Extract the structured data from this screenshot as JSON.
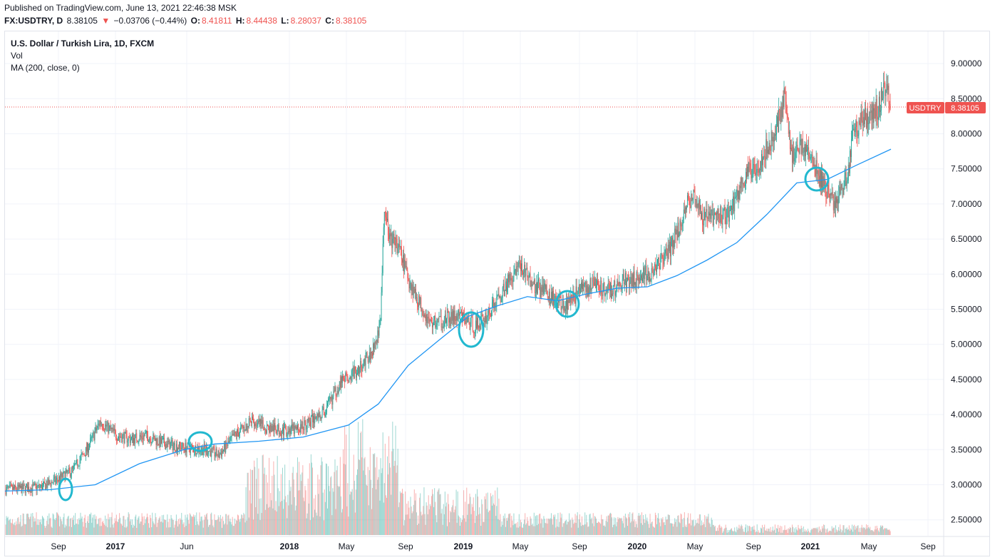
{
  "header": {
    "published": "Published on TradingView.com, June 13, 2021 22:46:38 MSK",
    "symbol": "FX:USDTRY, D",
    "last": "8.38105",
    "change_arrow": "▼",
    "change": "−0.03706 (−0.44%)",
    "open_label": "O:",
    "open": "8.41811",
    "high_label": "H:",
    "high": "8.44438",
    "low_label": "L:",
    "low": "8.28037",
    "close_label": "C:",
    "close": "8.38105"
  },
  "legend": {
    "title": "U.S. Dollar / Turkish Lira, 1D, FXCM",
    "vol": "Vol",
    "ma": "MA (200, close, 0)"
  },
  "price_badge": {
    "symbol": "USDTRY",
    "value": "8.38105"
  },
  "colors": {
    "up": "#26a69a",
    "down": "#ef5350",
    "ma": "#2196f3",
    "marker": "#22b8cf",
    "grid": "#f0f3fa"
  },
  "chart_data": {
    "type": "candlestick",
    "title": "U.S. Dollar / Turkish Lira, 1D, FXCM",
    "yaxis": {
      "min": 2.25,
      "max": 9.25,
      "ticks": [
        "9.00000",
        "8.50000",
        "8.00000",
        "7.50000",
        "7.00000",
        "6.50000",
        "6.00000",
        "5.50000",
        "5.00000",
        "4.50000",
        "4.00000",
        "3.50000",
        "3.00000",
        "2.50000"
      ]
    },
    "xaxis": {
      "ticks": [
        {
          "label": "Sep",
          "bold": false
        },
        {
          "label": "2017",
          "bold": true
        },
        {
          "label": "Jun",
          "bold": false
        },
        {
          "label": "2018",
          "bold": true
        },
        {
          "label": "May",
          "bold": false
        },
        {
          "label": "Sep",
          "bold": false
        },
        {
          "label": "2019",
          "bold": true
        },
        {
          "label": "May",
          "bold": false
        },
        {
          "label": "Sep",
          "bold": false
        },
        {
          "label": "2020",
          "bold": true
        },
        {
          "label": "May",
          "bold": false
        },
        {
          "label": "Sep",
          "bold": false
        },
        {
          "label": "2021",
          "bold": true
        },
        {
          "label": "May",
          "bold": false
        },
        {
          "label": "Sep",
          "bold": false
        }
      ]
    },
    "price_path": [
      [
        "2016-07-01",
        2.93
      ],
      [
        "2016-08-15",
        2.95
      ],
      [
        "2016-09-15",
        2.97
      ],
      [
        "2016-10-15",
        3.07
      ],
      [
        "2016-11-15",
        3.2
      ],
      [
        "2016-12-15",
        3.5
      ],
      [
        "2017-01-11",
        3.9
      ],
      [
        "2017-02-15",
        3.7
      ],
      [
        "2017-03-15",
        3.65
      ],
      [
        "2017-04-15",
        3.7
      ],
      [
        "2017-05-15",
        3.6
      ],
      [
        "2017-06-15",
        3.55
      ],
      [
        "2017-07-15",
        3.52
      ],
      [
        "2017-08-15",
        3.5
      ],
      [
        "2017-09-10",
        3.42
      ],
      [
        "2017-10-15",
        3.72
      ],
      [
        "2017-11-15",
        3.9
      ],
      [
        "2017-12-15",
        3.82
      ],
      [
        "2018-01-15",
        3.78
      ],
      [
        "2018-02-15",
        3.78
      ],
      [
        "2018-03-15",
        3.9
      ],
      [
        "2018-04-15",
        4.05
      ],
      [
        "2018-05-15",
        4.45
      ],
      [
        "2018-06-15",
        4.6
      ],
      [
        "2018-07-15",
        4.85
      ],
      [
        "2018-08-05",
        5.25
      ],
      [
        "2018-08-13",
        6.9
      ],
      [
        "2018-08-25",
        6.5
      ],
      [
        "2018-09-10",
        6.4
      ],
      [
        "2018-10-01",
        5.95
      ],
      [
        "2018-10-20",
        5.65
      ],
      [
        "2018-11-15",
        5.3
      ],
      [
        "2018-12-15",
        5.35
      ],
      [
        "2019-01-15",
        5.4
      ],
      [
        "2019-02-15",
        5.25
      ],
      [
        "2019-03-15",
        5.45
      ],
      [
        "2019-04-15",
        5.8
      ],
      [
        "2019-05-15",
        6.15
      ],
      [
        "2019-06-15",
        5.85
      ],
      [
        "2019-07-15",
        5.7
      ],
      [
        "2019-08-15",
        5.55
      ],
      [
        "2019-09-15",
        5.75
      ],
      [
        "2019-10-15",
        5.85
      ],
      [
        "2019-11-15",
        5.75
      ],
      [
        "2019-12-15",
        5.9
      ],
      [
        "2020-01-15",
        5.95
      ],
      [
        "2020-02-15",
        6.05
      ],
      [
        "2020-03-15",
        6.3
      ],
      [
        "2020-04-15",
        6.85
      ],
      [
        "2020-05-05",
        7.2
      ],
      [
        "2020-05-20",
        6.8
      ],
      [
        "2020-06-15",
        6.82
      ],
      [
        "2020-07-15",
        6.85
      ],
      [
        "2020-08-15",
        7.35
      ],
      [
        "2020-09-15",
        7.6
      ],
      [
        "2020-10-15",
        7.95
      ],
      [
        "2020-11-06",
        8.55
      ],
      [
        "2020-11-20",
        7.7
      ],
      [
        "2020-12-15",
        7.85
      ],
      [
        "2021-01-15",
        7.4
      ],
      [
        "2021-02-15",
        7.0
      ],
      [
        "2021-03-15",
        7.4
      ],
      [
        "2021-03-25",
        8.05
      ],
      [
        "2021-04-15",
        8.2
      ],
      [
        "2021-05-15",
        8.35
      ],
      [
        "2021-06-03",
        8.7
      ],
      [
        "2021-06-11",
        8.38
      ]
    ],
    "ma_series": {
      "name": "MA (200, close, 0)",
      "points": [
        [
          "2016-07-01",
          2.91
        ],
        [
          "2016-10-01",
          2.93
        ],
        [
          "2017-01-01",
          3.0
        ],
        [
          "2017-04-01",
          3.3
        ],
        [
          "2017-07-01",
          3.5
        ],
        [
          "2017-09-01",
          3.58
        ],
        [
          "2017-12-01",
          3.62
        ],
        [
          "2018-03-01",
          3.68
        ],
        [
          "2018-06-01",
          3.85
        ],
        [
          "2018-08-01",
          4.15
        ],
        [
          "2018-10-01",
          4.7
        ],
        [
          "2018-12-01",
          5.05
        ],
        [
          "2019-02-01",
          5.4
        ],
        [
          "2019-04-01",
          5.55
        ],
        [
          "2019-06-01",
          5.68
        ],
        [
          "2019-08-01",
          5.62
        ],
        [
          "2019-10-01",
          5.72
        ],
        [
          "2019-12-01",
          5.8
        ],
        [
          "2020-02-01",
          5.82
        ],
        [
          "2020-04-01",
          5.98
        ],
        [
          "2020-06-01",
          6.2
        ],
        [
          "2020-08-01",
          6.45
        ],
        [
          "2020-10-01",
          6.85
        ],
        [
          "2020-12-01",
          7.3
        ],
        [
          "2021-02-01",
          7.35
        ],
        [
          "2021-04-01",
          7.55
        ],
        [
          "2021-06-11",
          7.78
        ]
      ]
    },
    "last_price": 8.38105
  }
}
